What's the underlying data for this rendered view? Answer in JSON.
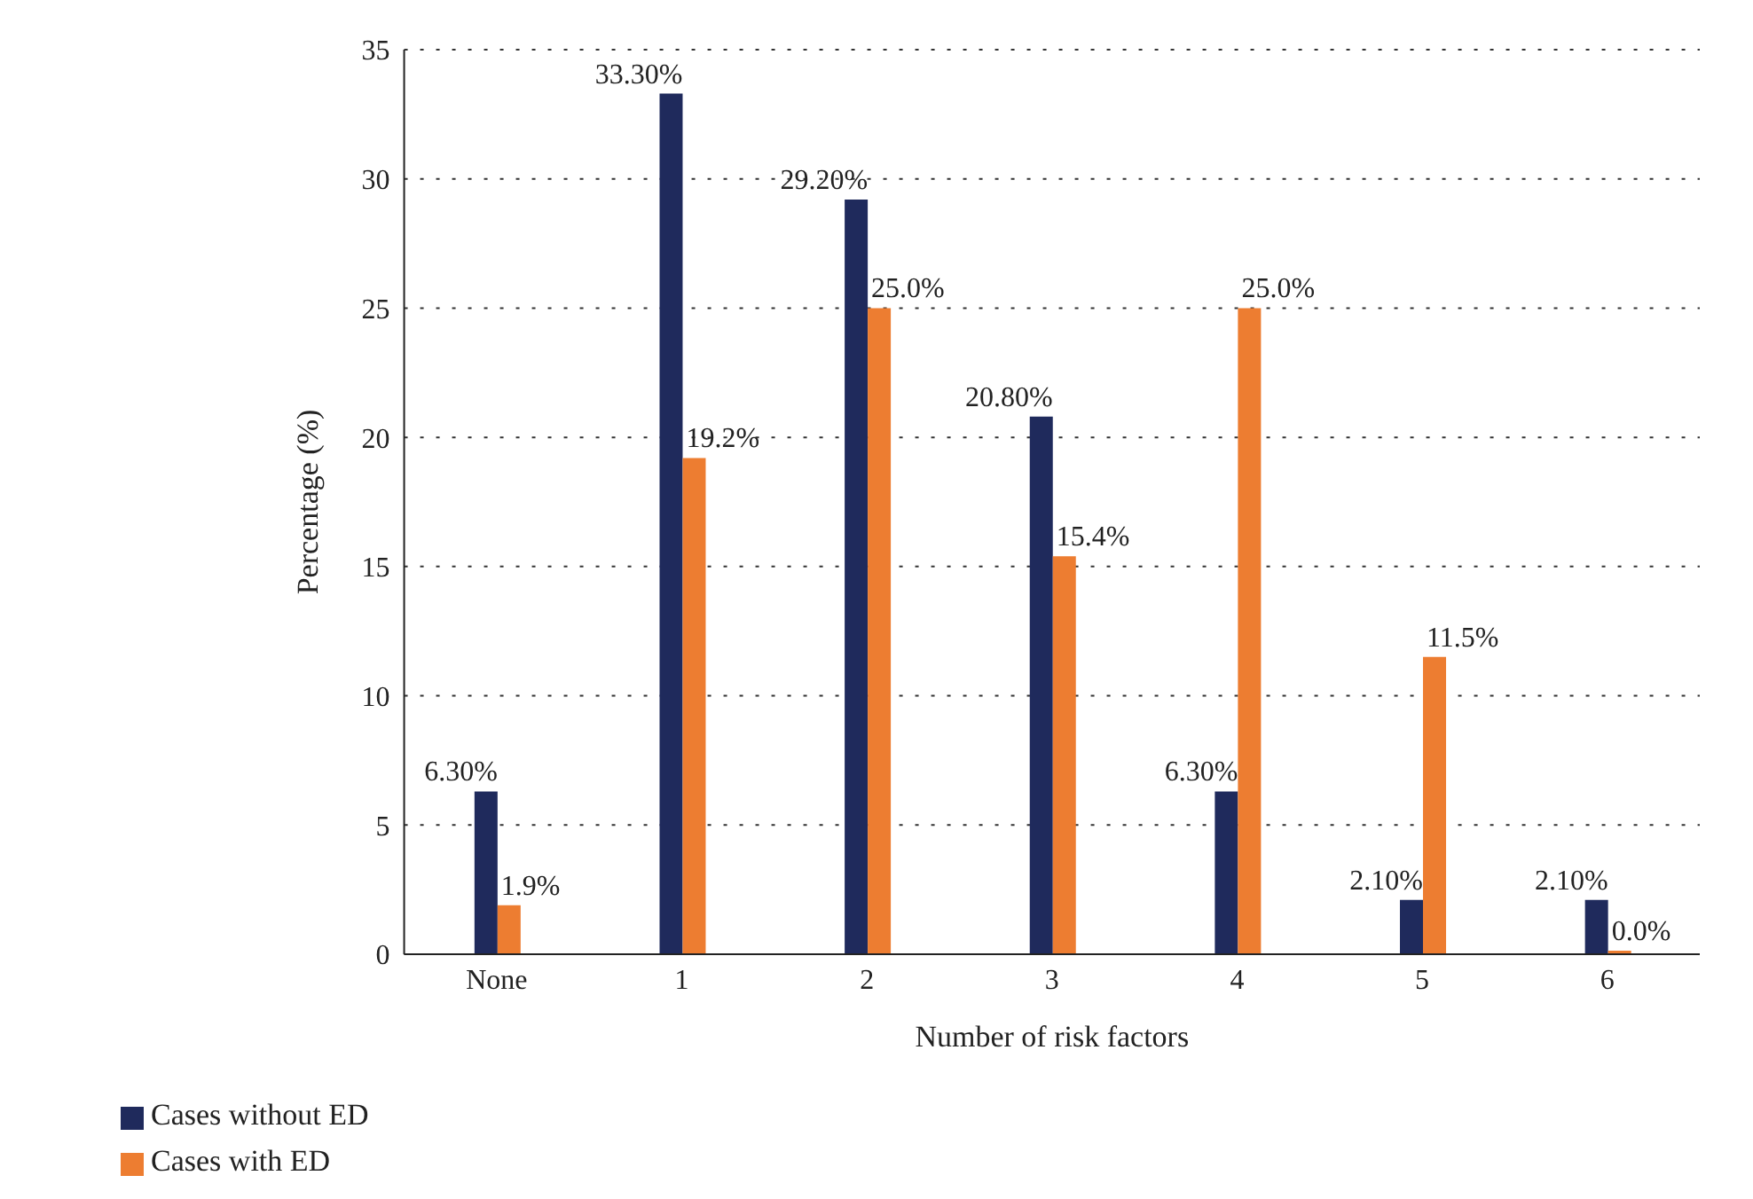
{
  "chart_data": {
    "type": "bar",
    "xlabel": "Number of risk factors",
    "ylabel": "Percentage (%)",
    "categories": [
      "None",
      "1",
      "2",
      "3",
      "4",
      "5",
      "6"
    ],
    "series": [
      {
        "name": "Cases without ED",
        "color": "#1f2a5c",
        "values": [
          6.3,
          33.3,
          29.2,
          20.8,
          6.3,
          2.1,
          2.1
        ],
        "value_labels": [
          "6.30%",
          "33.30%",
          "29.20%",
          "20.80%",
          "6.30%",
          "2.10%",
          "2.10%"
        ]
      },
      {
        "name": "Cases with ED",
        "color": "#ed7d31",
        "values": [
          1.9,
          19.2,
          25.0,
          15.4,
          25.0,
          11.5,
          0.0
        ],
        "value_labels": [
          "1.9%",
          "19.2%",
          "25.0%",
          "15.4%",
          "25.0%",
          "11.5%",
          "0.0%"
        ]
      }
    ],
    "ylim": [
      0,
      35
    ],
    "yticks": [
      0,
      5,
      10,
      15,
      20,
      25,
      30,
      35
    ],
    "grid": "y",
    "legend": "bottom left"
  }
}
